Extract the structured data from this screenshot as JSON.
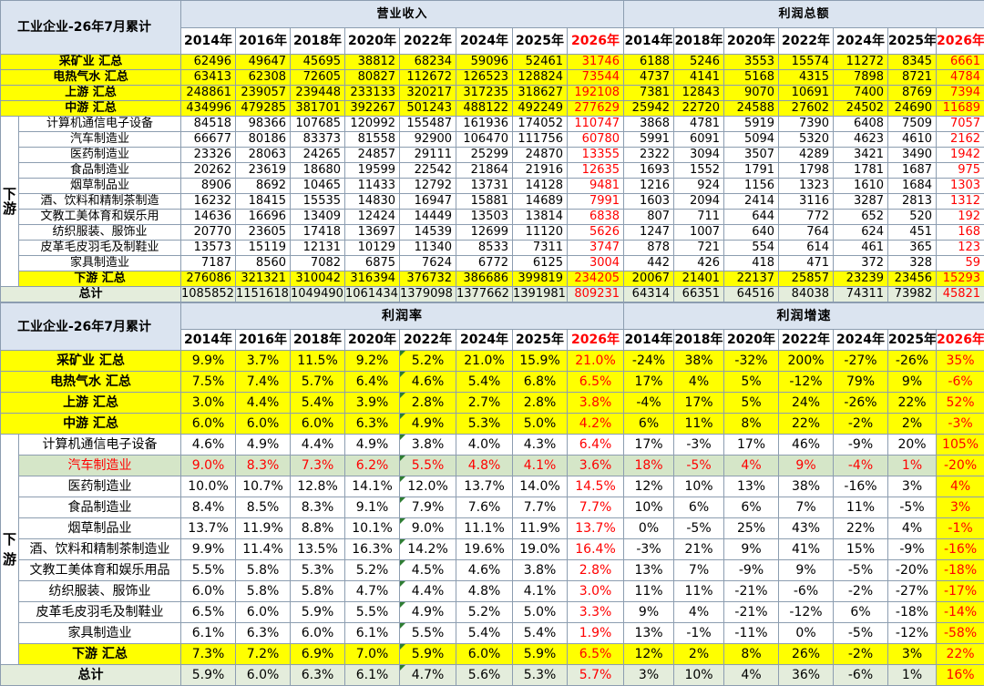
{
  "top": {
    "title": "工业企业-26年7月累计",
    "revenue_header": "营业收入",
    "profit_header": "利润总额",
    "revenue_years": [
      "2014年",
      "2016年",
      "2018年",
      "2020年",
      "2022年",
      "2024年",
      "2025年",
      "2026年"
    ],
    "profit_years": [
      "2014年",
      "2018年",
      "2020年",
      "2022年",
      "2024年",
      "2025年",
      "2026年"
    ],
    "side_label": "下\n游",
    "rows": [
      {
        "label": "采矿业 汇总",
        "style": "yl",
        "rev": [
          "62496",
          "49647",
          "45695",
          "38812",
          "68234",
          "59096",
          "52461",
          "31746"
        ],
        "pro": [
          "6188",
          "5246",
          "3553",
          "15574",
          "11272",
          "8345",
          "6661"
        ]
      },
      {
        "label": "电热气水 汇总",
        "style": "yl",
        "rev": [
          "63413",
          "62308",
          "72605",
          "80827",
          "112672",
          "126523",
          "128824",
          "73544"
        ],
        "pro": [
          "4737",
          "4141",
          "5168",
          "4315",
          "7898",
          "8721",
          "4784"
        ]
      },
      {
        "label": "上游 汇总",
        "style": "yl",
        "rev": [
          "248861",
          "239057",
          "239448",
          "233133",
          "320217",
          "317235",
          "318627",
          "192108"
        ],
        "pro": [
          "7381",
          "12843",
          "9070",
          "10691",
          "7400",
          "8769",
          "7394"
        ]
      },
      {
        "label": "中游 汇总",
        "style": "yl",
        "rev": [
          "434996",
          "479285",
          "381701",
          "392267",
          "501243",
          "488122",
          "492249",
          "277629"
        ],
        "pro": [
          "25942",
          "22720",
          "24588",
          "27602",
          "24502",
          "24690",
          "11689"
        ]
      },
      {
        "label": "计算机通信电子设备",
        "style": "ds",
        "rev": [
          "84518",
          "98366",
          "107685",
          "120992",
          "155487",
          "161936",
          "174052",
          "110747"
        ],
        "pro": [
          "3868",
          "4781",
          "5919",
          "7390",
          "6408",
          "7509",
          "7057"
        ]
      },
      {
        "label": "汽车制造业",
        "style": "ds",
        "rev": [
          "66677",
          "80186",
          "83373",
          "81558",
          "92900",
          "106470",
          "111756",
          "60780"
        ],
        "pro": [
          "5991",
          "6091",
          "5094",
          "5320",
          "4623",
          "4610",
          "2162"
        ]
      },
      {
        "label": "医药制造业",
        "style": "ds",
        "rev": [
          "23326",
          "28063",
          "24265",
          "24857",
          "29111",
          "25299",
          "24870",
          "13355"
        ],
        "pro": [
          "2322",
          "3094",
          "3507",
          "4289",
          "3421",
          "3490",
          "1942"
        ]
      },
      {
        "label": "食品制造业",
        "style": "ds",
        "rev": [
          "20262",
          "23619",
          "18680",
          "19599",
          "22542",
          "21864",
          "21916",
          "12635"
        ],
        "pro": [
          "1693",
          "1552",
          "1791",
          "1798",
          "1781",
          "1687",
          "975"
        ]
      },
      {
        "label": "烟草制品业",
        "style": "ds",
        "rev": [
          "8906",
          "8692",
          "10465",
          "11433",
          "12792",
          "13731",
          "14128",
          "9481"
        ],
        "pro": [
          "1216",
          "924",
          "1156",
          "1323",
          "1610",
          "1684",
          "1303"
        ]
      },
      {
        "label": "酒、饮料和精制茶制造",
        "style": "ds",
        "rev": [
          "16232",
          "18415",
          "15535",
          "14830",
          "16947",
          "15881",
          "14689",
          "7991"
        ],
        "pro": [
          "1603",
          "2094",
          "2414",
          "3116",
          "3287",
          "2813",
          "1312"
        ]
      },
      {
        "label": "文教工美体育和娱乐用",
        "style": "ds",
        "rev": [
          "14636",
          "16696",
          "13409",
          "12424",
          "14449",
          "13503",
          "13814",
          "6838"
        ],
        "pro": [
          "807",
          "711",
          "644",
          "772",
          "652",
          "520",
          "192"
        ]
      },
      {
        "label": "纺织服装、服饰业",
        "style": "ds",
        "rev": [
          "20770",
          "23605",
          "17418",
          "13697",
          "14539",
          "12699",
          "11120",
          "5626"
        ],
        "pro": [
          "1247",
          "1007",
          "640",
          "764",
          "624",
          "451",
          "168"
        ]
      },
      {
        "label": "皮革毛皮羽毛及制鞋业",
        "style": "ds",
        "rev": [
          "13573",
          "15119",
          "12131",
          "10129",
          "11340",
          "8533",
          "7311",
          "3747"
        ],
        "pro": [
          "878",
          "721",
          "554",
          "614",
          "461",
          "365",
          "123"
        ]
      },
      {
        "label": "家具制造业",
        "style": "ds",
        "rev": [
          "7187",
          "8560",
          "7082",
          "6875",
          "7624",
          "6772",
          "6125",
          "3004"
        ],
        "pro": [
          "442",
          "426",
          "418",
          "471",
          "372",
          "328",
          "59"
        ]
      },
      {
        "label": "下游 汇总",
        "style": "yl",
        "rev": [
          "276086",
          "321321",
          "310042",
          "316394",
          "376732",
          "386686",
          "399819",
          "234205"
        ],
        "pro": [
          "20067",
          "21401",
          "22137",
          "25857",
          "23239",
          "23456",
          "15293"
        ]
      },
      {
        "label": "总计",
        "style": "total",
        "rev": [
          "1085852",
          "1151618",
          "1049490",
          "1061434",
          "1379098",
          "1377662",
          "1391981",
          "809231"
        ],
        "pro": [
          "64314",
          "66351",
          "64516",
          "84038",
          "74311",
          "73982",
          "45821"
        ]
      }
    ]
  },
  "bottom": {
    "title": "工业企业-26年7月累计",
    "margin_header": "利润率",
    "growth_header": "利润增速",
    "margin_years": [
      "2014年",
      "2016年",
      "2018年",
      "2020年",
      "2022年",
      "2024年",
      "2025年",
      "2026年"
    ],
    "growth_years": [
      "2014年",
      "2018年",
      "2020年",
      "2022年",
      "2024年",
      "2025年",
      "2026年"
    ],
    "side_label": "下\n游",
    "rows": [
      {
        "label": "采矿业 汇总",
        "style": "yl",
        "mar": [
          "9.9%",
          "3.7%",
          "11.5%",
          "9.2%",
          "5.2%",
          "21.0%",
          "15.9%",
          "21.0%"
        ],
        "gro": [
          "-24%",
          "38%",
          "-32%",
          "200%",
          "-27%",
          "-26%",
          "35%"
        ]
      },
      {
        "label": "电热气水 汇总",
        "style": "yl",
        "mar": [
          "7.5%",
          "7.4%",
          "5.7%",
          "6.4%",
          "4.6%",
          "5.4%",
          "6.8%",
          "6.5%"
        ],
        "gro": [
          "17%",
          "4%",
          "5%",
          "-12%",
          "79%",
          "9%",
          "-6%"
        ]
      },
      {
        "label": "上游 汇总",
        "style": "yl",
        "mar": [
          "3.0%",
          "4.4%",
          "5.4%",
          "3.9%",
          "2.8%",
          "2.7%",
          "2.8%",
          "3.8%"
        ],
        "gro": [
          "-4%",
          "17%",
          "5%",
          "24%",
          "-26%",
          "22%",
          "52%"
        ]
      },
      {
        "label": "中游 汇总",
        "style": "yl",
        "mar": [
          "6.0%",
          "6.0%",
          "6.0%",
          "6.3%",
          "4.9%",
          "5.3%",
          "5.0%",
          "4.2%"
        ],
        "gro": [
          "6%",
          "11%",
          "8%",
          "22%",
          "-2%",
          "2%",
          "-3%"
        ]
      },
      {
        "label": "计算机通信电子设备",
        "style": "ds",
        "mar": [
          "4.6%",
          "4.9%",
          "4.4%",
          "4.9%",
          "3.8%",
          "4.0%",
          "4.3%",
          "6.4%"
        ],
        "gro": [
          "17%",
          "-3%",
          "17%",
          "46%",
          "-9%",
          "20%",
          "105%"
        ]
      },
      {
        "label": "汽车制造业",
        "style": "auto",
        "mar": [
          "9.0%",
          "8.3%",
          "7.3%",
          "6.2%",
          "5.5%",
          "4.8%",
          "4.1%",
          "3.6%"
        ],
        "gro": [
          "18%",
          "-5%",
          "4%",
          "9%",
          "-4%",
          "1%",
          "-20%"
        ]
      },
      {
        "label": "医药制造业",
        "style": "ds",
        "mar": [
          "10.0%",
          "10.7%",
          "12.8%",
          "14.1%",
          "12.0%",
          "13.7%",
          "14.0%",
          "14.5%"
        ],
        "gro": [
          "12%",
          "10%",
          "13%",
          "38%",
          "-16%",
          "3%",
          "4%"
        ]
      },
      {
        "label": "食品制造业",
        "style": "ds",
        "mar": [
          "8.4%",
          "8.5%",
          "8.3%",
          "9.1%",
          "7.9%",
          "7.6%",
          "7.7%",
          "7.7%"
        ],
        "gro": [
          "10%",
          "6%",
          "6%",
          "7%",
          "11%",
          "-5%",
          "3%"
        ]
      },
      {
        "label": "烟草制品业",
        "style": "ds",
        "mar": [
          "13.7%",
          "11.9%",
          "8.8%",
          "10.1%",
          "9.0%",
          "11.1%",
          "11.9%",
          "13.7%"
        ],
        "gro": [
          "0%",
          "-5%",
          "25%",
          "43%",
          "22%",
          "4%",
          "-1%"
        ]
      },
      {
        "label": "酒、饮料和精制茶制造业",
        "style": "ds",
        "mar": [
          "9.9%",
          "11.4%",
          "13.5%",
          "16.3%",
          "14.2%",
          "19.6%",
          "19.0%",
          "16.4%"
        ],
        "gro": [
          "-3%",
          "21%",
          "9%",
          "41%",
          "15%",
          "-9%",
          "-16%"
        ]
      },
      {
        "label": "文教工美体育和娱乐用品",
        "style": "ds",
        "mar": [
          "5.5%",
          "5.8%",
          "5.3%",
          "5.2%",
          "4.5%",
          "4.6%",
          "3.8%",
          "2.8%"
        ],
        "gro": [
          "13%",
          "7%",
          "-9%",
          "9%",
          "-5%",
          "-20%",
          "-18%"
        ]
      },
      {
        "label": "纺织服装、服饰业",
        "style": "ds",
        "mar": [
          "6.0%",
          "5.8%",
          "5.8%",
          "4.7%",
          "4.4%",
          "4.8%",
          "4.1%",
          "3.0%"
        ],
        "gro": [
          "11%",
          "11%",
          "-21%",
          "-6%",
          "-2%",
          "-27%",
          "-17%"
        ]
      },
      {
        "label": "皮革毛皮羽毛及制鞋业",
        "style": "ds",
        "mar": [
          "6.5%",
          "6.0%",
          "5.9%",
          "5.5%",
          "4.9%",
          "5.2%",
          "5.0%",
          "3.3%"
        ],
        "gro": [
          "9%",
          "4%",
          "-21%",
          "-12%",
          "6%",
          "-18%",
          "-14%"
        ]
      },
      {
        "label": "家具制造业",
        "style": "ds",
        "mar": [
          "6.1%",
          "6.3%",
          "6.0%",
          "6.1%",
          "5.5%",
          "5.4%",
          "5.4%",
          "1.9%"
        ],
        "gro": [
          "13%",
          "-1%",
          "-11%",
          "0%",
          "-5%",
          "-12%",
          "-58%"
        ]
      },
      {
        "label": "下游 汇总",
        "style": "yl",
        "mar": [
          "7.3%",
          "7.2%",
          "6.9%",
          "7.0%",
          "5.9%",
          "6.0%",
          "5.9%",
          "6.5%"
        ],
        "gro": [
          "12%",
          "2%",
          "8%",
          "26%",
          "-2%",
          "3%",
          "22%"
        ]
      },
      {
        "label": "总计",
        "style": "total",
        "mar": [
          "5.9%",
          "6.0%",
          "6.3%",
          "6.1%",
          "4.7%",
          "5.6%",
          "5.3%",
          "5.7%"
        ],
        "gro": [
          "3%",
          "10%",
          "4%",
          "36%",
          "-6%",
          "1%",
          "16%"
        ]
      }
    ]
  },
  "colors": {
    "yellow": "#ffff00",
    "header": "#dbe4f0",
    "total": "#e4eddc",
    "auto_row": "#d5e6c8",
    "highlight": "#ff0000",
    "grid": "#8c9db0"
  }
}
